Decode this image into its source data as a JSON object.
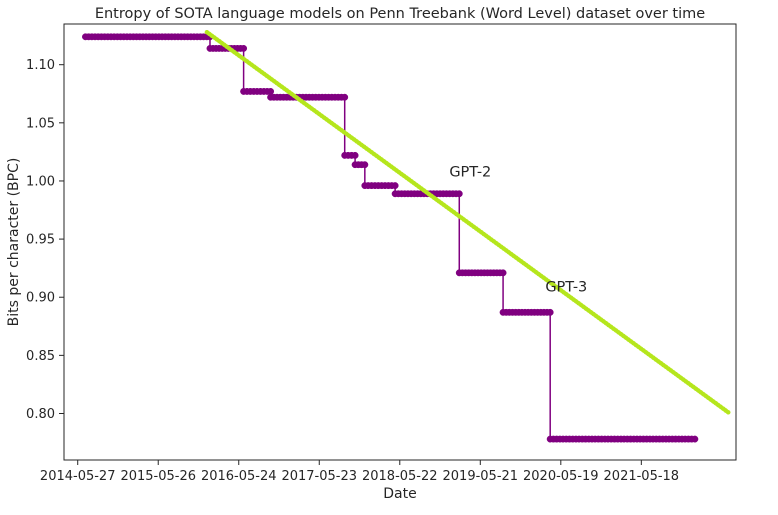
{
  "chart_data": {
    "type": "line",
    "title": "Entropy of SOTA language models on Penn Treebank (Word Level) dataset over time",
    "xlabel": "Date",
    "ylabel": "Bits per character (BPC)",
    "xlim": [
      "2014-03-26",
      "2022-07-20"
    ],
    "ylim": [
      0.76,
      1.135
    ],
    "x_ticks": [
      "2014-05-27",
      "2015-05-26",
      "2016-05-24",
      "2017-05-23",
      "2018-05-22",
      "2019-05-21",
      "2020-05-19",
      "2021-05-18"
    ],
    "y_ticks": [
      0.8,
      0.85,
      0.9,
      0.95,
      1.0,
      1.05,
      1.1
    ],
    "grid": false,
    "series": [
      {
        "kind": "step",
        "color": "#800080",
        "marker": "circle",
        "steps": [
          {
            "from": "2014-07-01",
            "to": "2016-01-15",
            "value": 1.124
          },
          {
            "from": "2016-01-15",
            "to": "2016-06-15",
            "value": 1.114
          },
          {
            "from": "2016-06-15",
            "to": "2016-10-15",
            "value": 1.077
          },
          {
            "from": "2016-10-15",
            "to": "2017-09-15",
            "value": 1.072
          },
          {
            "from": "2017-09-15",
            "to": "2017-11-01",
            "value": 1.022
          },
          {
            "from": "2017-11-01",
            "to": "2017-12-15",
            "value": 1.014
          },
          {
            "from": "2017-12-15",
            "to": "2018-05-01",
            "value": 0.996
          },
          {
            "from": "2018-05-01",
            "to": "2019-02-15",
            "value": 0.989
          },
          {
            "from": "2019-02-15",
            "to": "2019-09-01",
            "value": 0.921
          },
          {
            "from": "2019-09-01",
            "to": "2020-04-01",
            "value": 0.887
          },
          {
            "from": "2020-04-01",
            "to": "2022-01-15",
            "value": 0.778
          }
        ]
      },
      {
        "kind": "trend",
        "color": "#b5e61d",
        "points": [
          {
            "x": "2016-01-01",
            "y": 1.128
          },
          {
            "x": "2022-06-15",
            "y": 0.801
          }
        ]
      }
    ],
    "annotations": [
      {
        "text": "GPT-2",
        "x": "2019-01-01",
        "y": 1.004
      },
      {
        "text": "GPT-3",
        "x": "2020-03-10",
        "y": 0.905
      }
    ]
  }
}
